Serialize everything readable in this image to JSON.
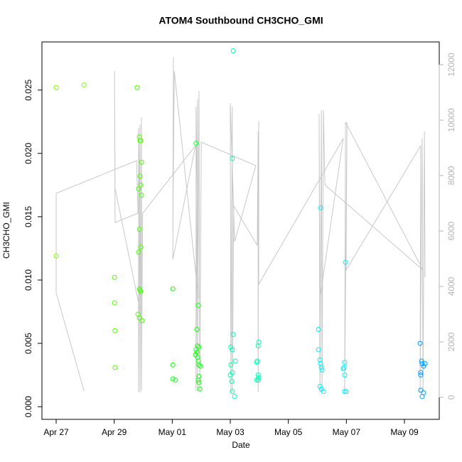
{
  "chart_data": {
    "type": "scatter",
    "title": "ATOM4 Southbound CH3CHO_GMI",
    "x_label": "Date",
    "y_label": "CH3CHO_GMI",
    "xlim": [
      -0.49,
      13.2
    ],
    "ylim": [
      -0.001,
      0.0288
    ],
    "y2lim": [
      -795,
      12821
    ],
    "xticks": [
      {
        "value": 0,
        "label": "Apr 27"
      },
      {
        "value": 2,
        "label": "Apr 29"
      },
      {
        "value": 4,
        "label": "May 01"
      },
      {
        "value": 6,
        "label": "May 03"
      },
      {
        "value": 8,
        "label": "May 05"
      },
      {
        "value": 10,
        "label": "May 07"
      },
      {
        "value": 12,
        "label": "May 09"
      }
    ],
    "yticks": [
      {
        "value": 0,
        "label": "0.000"
      },
      0.005,
      {
        "value": 0.01,
        "label": "0.010"
      },
      0.015,
      {
        "value": 0.02,
        "label": "0.020"
      },
      0.025
    ],
    "y2ticks": [
      0,
      2000,
      4000,
      6000,
      8000,
      10000,
      12000
    ],
    "series": [
      {
        "type": "line",
        "axis": "y2",
        "color": "#c8c8c8",
        "x": [
          0.96,
          0,
          0,
          2.77,
          2.82,
          2.03,
          2.01,
          2.03,
          2.91,
          2.84,
          2.84,
          2.89,
          2.89,
          2.94,
          2.94,
          2.98,
          4.8,
          4.02,
          4.04,
          4.02,
          4.07,
          4.9,
          4.82,
          4.82,
          4.87,
          4.87,
          4.92,
          4.95,
          5.0,
          6.88,
          6.15,
          6.0,
          6.02,
          6.07,
          6.07,
          6.12,
          6.93,
          6.96,
          6.96,
          6.98,
          6.98,
          9.89,
          9.09,
          9.06,
          9.09,
          9.14,
          9.16,
          9.21,
          9.26,
          12.64,
          9.97,
          9.94,
          10.02,
          9.99,
          12.56,
          12.54,
          12.61,
          12.64,
          12.69,
          12.71
        ],
        "values": [
          231,
          3769,
          7359,
          8538,
          6641,
          6308,
          11769,
          7538,
          3051,
          9718,
          179,
          9846,
          179,
          10103,
          231,
          6641,
          9077,
          4974,
          12282,
          6000,
          11769,
          3564,
          10487,
          231,
          10744,
          231,
          11051,
          231,
          9205,
          8359,
          5615,
          10615,
          179,
          10487,
          179,
          6897,
          5487,
          9590,
          179,
          9974,
          4077,
          9333,
          3564,
          10231,
          179,
          10359,
          179,
          10359,
          7667,
          4590,
          9923,
          179,
          9923,
          4590,
          9077,
          179,
          9333,
          179,
          9590,
          4333
        ]
      },
      {
        "type": "scatter",
        "x": [
          0,
          0,
          0.96,
          2.01,
          2.01,
          2.03,
          2.03,
          2.79,
          2.87,
          2.89,
          2.91,
          2.94,
          2.89,
          2.91,
          2.84,
          2.94,
          2.87,
          2.91,
          2.84,
          2.87,
          2.89,
          2.91,
          2.82,
          2.87,
          2.96,
          4.02,
          4.02,
          4.02,
          4.11,
          4.82,
          4.9,
          4.85,
          4.87,
          4.92,
          4.82,
          4.85,
          4.8,
          4.87,
          4.9,
          4.92,
          4.97,
          4.92,
          4.9,
          4.92,
          4.95,
          6.1,
          6.07,
          6.1,
          6.02,
          6.07,
          6.17,
          6.02,
          6.07,
          6.0,
          6.05,
          6.07,
          6.15,
          6.98,
          6.96,
          6.93,
          6.91,
          6.96,
          6.98,
          6.91,
          6.96,
          9.11,
          9.04,
          9.04,
          9.09,
          9.11,
          9.14,
          9.16,
          9.09,
          9.14,
          9.21,
          9.97,
          9.94,
          9.92,
          9.89,
          9.94,
          9.94,
          9.99,
          12.54,
          12.59,
          12.61,
          12.71,
          12.66,
          12.56,
          12.56,
          12.56,
          12.66,
          12.61
        ],
        "values": [
          0.0252,
          0.0119,
          0.0254,
          0.0102,
          0.0082,
          0.006,
          0.0031,
          0.0252,
          0.0213,
          0.021,
          0.021,
          0.0193,
          0.0182,
          0.0175,
          0.0172,
          0.0167,
          0.014,
          0.0126,
          0.0122,
          0.0093,
          0.0092,
          0.0091,
          0.0073,
          0.007,
          0.0068,
          0.0093,
          0.0033,
          0.0022,
          0.0021,
          0.0208,
          0.008,
          0.0061,
          0.0048,
          0.0047,
          0.0045,
          0.0043,
          0.0041,
          0.0039,
          0.0036,
          0.0033,
          0.0032,
          0.0024,
          0.0021,
          0.0019,
          0.0014,
          0.0281,
          0.0196,
          0.0057,
          0.0047,
          0.0045,
          0.0036,
          0.0033,
          0.0027,
          0.0025,
          0.002,
          0.0012,
          0.0008,
          0.0051,
          0.0048,
          0.0036,
          0.0035,
          0.0025,
          0.0023,
          0.0021,
          0.0021,
          0.0157,
          0.0061,
          0.0045,
          0.0037,
          0.0034,
          0.0031,
          0.0029,
          0.0016,
          0.0014,
          0.0012,
          0.0114,
          0.0035,
          0.0031,
          0.003,
          0.0025,
          0.0012,
          0.0012,
          0.005,
          0.0036,
          0.0034,
          0.0034,
          0.0032,
          0.0027,
          0.0025,
          0.0013,
          0.0011,
          0.0008
        ],
        "colors": [
          "#80ff00",
          "#80ff00",
          "#80ff00",
          "#4dff00",
          "#4dff00",
          "#4dff00",
          "#4dff00",
          "#4dff00",
          "#4dff00",
          "#4dff00",
          "#4dff00",
          "#4dff00",
          "#4dff00",
          "#4dff00",
          "#4dff00",
          "#4dff00",
          "#4dff00",
          "#4dff00",
          "#4dff00",
          "#4dff00",
          "#4dff00",
          "#4dff00",
          "#4dff00",
          "#4dff00",
          "#4dff00",
          "#1aff1a",
          "#1aff1a",
          "#1aff1a",
          "#1aff1a",
          "#1aff1a",
          "#1aff1a",
          "#1aff1a",
          "#1aff1a",
          "#1aff1a",
          "#1aff1a",
          "#1aff1a",
          "#1aff1a",
          "#1aff1a",
          "#1aff1a",
          "#1aff1a",
          "#1aff1a",
          "#1aff1a",
          "#1aff1a",
          "#1aff1a",
          "#1aff1a",
          "#00ffb3",
          "#00ffb3",
          "#00ffb3",
          "#00ffb3",
          "#00ffb3",
          "#00ffb3",
          "#00ffb3",
          "#00ffb3",
          "#00ffb3",
          "#00ffb3",
          "#00ffb3",
          "#00ffb3",
          "#00ffb3",
          "#00ffb3",
          "#00ffb3",
          "#00ffb3",
          "#00ffb3",
          "#00ffb3",
          "#00ffb3",
          "#00ffb3",
          "#00f0ff",
          "#00f0ff",
          "#00f0ff",
          "#00f0ff",
          "#00f0ff",
          "#00f0ff",
          "#00f0ff",
          "#00f0ff",
          "#00f0ff",
          "#00f0ff",
          "#00f0ff",
          "#00f0ff",
          "#00f0ff",
          "#00f0ff",
          "#00f0ff",
          "#00f0ff",
          "#00f0ff",
          "#0099ff",
          "#0099ff",
          "#0099ff",
          "#0099ff",
          "#0099ff",
          "#0099ff",
          "#0099ff",
          "#0099ff",
          "#0099ff",
          "#0099ff"
        ]
      }
    ]
  }
}
